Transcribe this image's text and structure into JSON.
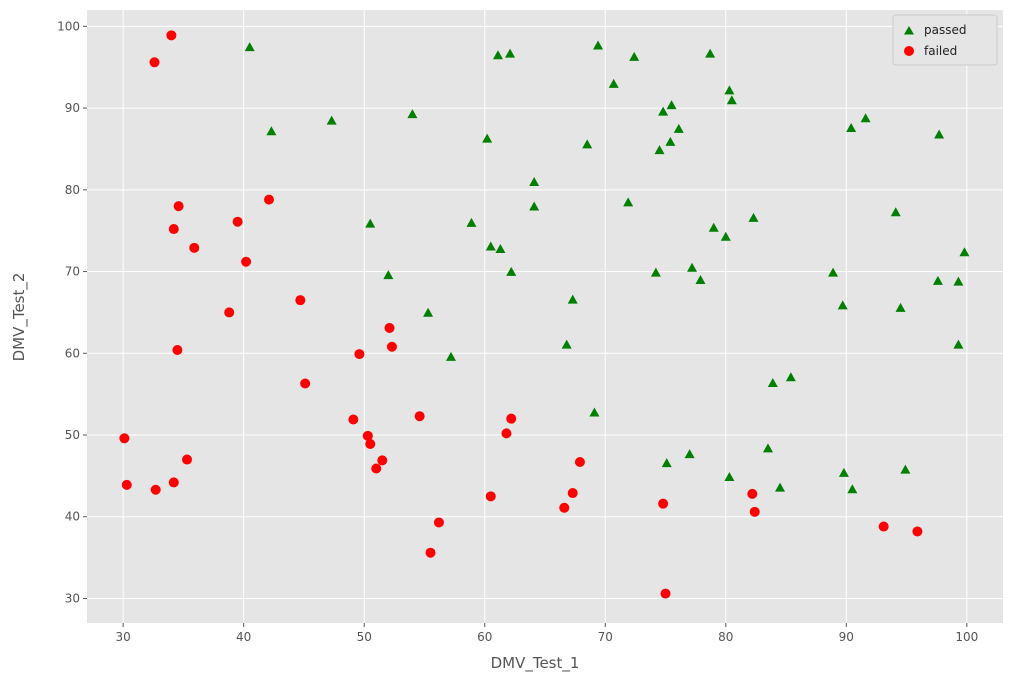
{
  "chart_data": {
    "type": "scatter",
    "title": "",
    "xlabel": "DMV_Test_1",
    "ylabel": "DMV_Test_2",
    "xlim": [
      27,
      103
    ],
    "ylim": [
      27,
      102
    ],
    "xticks": [
      30,
      40,
      50,
      60,
      70,
      80,
      90,
      100
    ],
    "yticks": [
      30,
      40,
      50,
      60,
      70,
      80,
      90,
      100
    ],
    "grid": true,
    "legend_position": "top-right",
    "colors": {
      "background": "#e5e5e5",
      "grid": "#ffffff",
      "passed": "#008000",
      "failed": "#ff0000"
    },
    "series": [
      {
        "name": "passed",
        "marker": "triangle",
        "color": "#008000",
        "points": [
          [
            40.5,
            97.4
          ],
          [
            42.3,
            87.1
          ],
          [
            47.3,
            88.4
          ],
          [
            50.5,
            75.8
          ],
          [
            52.0,
            69.5
          ],
          [
            54.0,
            89.2
          ],
          [
            55.3,
            64.9
          ],
          [
            57.2,
            59.5
          ],
          [
            58.9,
            75.9
          ],
          [
            60.2,
            86.2
          ],
          [
            60.5,
            73.0
          ],
          [
            61.1,
            96.4
          ],
          [
            61.3,
            72.7
          ],
          [
            62.1,
            96.6
          ],
          [
            62.2,
            69.9
          ],
          [
            64.1,
            80.9
          ],
          [
            64.1,
            77.9
          ],
          [
            66.8,
            61.0
          ],
          [
            67.3,
            66.5
          ],
          [
            68.5,
            85.5
          ],
          [
            69.1,
            52.7
          ],
          [
            69.4,
            97.6
          ],
          [
            70.7,
            92.9
          ],
          [
            71.9,
            78.4
          ],
          [
            72.4,
            96.2
          ],
          [
            74.2,
            69.8
          ],
          [
            74.5,
            84.8
          ],
          [
            74.8,
            89.5
          ],
          [
            75.1,
            46.5
          ],
          [
            75.4,
            85.8
          ],
          [
            75.5,
            90.3
          ],
          [
            76.1,
            87.4
          ],
          [
            77.0,
            47.6
          ],
          [
            77.2,
            70.4
          ],
          [
            77.9,
            68.9
          ],
          [
            78.7,
            96.6
          ],
          [
            79.0,
            75.3
          ],
          [
            80.0,
            74.2
          ],
          [
            80.3,
            44.8
          ],
          [
            80.3,
            92.1
          ],
          [
            80.5,
            90.9
          ],
          [
            82.3,
            76.5
          ],
          [
            83.5,
            48.3
          ],
          [
            83.9,
            56.3
          ],
          [
            84.5,
            43.5
          ],
          [
            85.4,
            57.0
          ],
          [
            88.9,
            69.8
          ],
          [
            89.7,
            65.8
          ],
          [
            89.8,
            45.3
          ],
          [
            90.4,
            87.5
          ],
          [
            90.5,
            43.3
          ],
          [
            91.6,
            88.7
          ],
          [
            94.1,
            77.2
          ],
          [
            94.5,
            65.5
          ],
          [
            94.9,
            45.7
          ],
          [
            97.6,
            68.8
          ],
          [
            97.7,
            86.7
          ],
          [
            99.3,
            68.7
          ],
          [
            99.3,
            61.0
          ],
          [
            99.8,
            72.3
          ]
        ]
      },
      {
        "name": "failed",
        "marker": "circle",
        "color": "#ff0000",
        "points": [
          [
            30.1,
            49.6
          ],
          [
            30.3,
            43.9
          ],
          [
            32.6,
            95.6
          ],
          [
            32.7,
            43.3
          ],
          [
            34.0,
            98.9
          ],
          [
            34.2,
            75.2
          ],
          [
            34.2,
            44.2
          ],
          [
            34.5,
            60.4
          ],
          [
            34.6,
            78.0
          ],
          [
            35.3,
            47.0
          ],
          [
            35.9,
            72.9
          ],
          [
            38.8,
            65.0
          ],
          [
            39.5,
            76.1
          ],
          [
            40.2,
            71.2
          ],
          [
            42.1,
            78.8
          ],
          [
            44.7,
            66.5
          ],
          [
            45.1,
            56.3
          ],
          [
            49.1,
            51.9
          ],
          [
            49.6,
            59.9
          ],
          [
            50.3,
            49.9
          ],
          [
            50.5,
            48.9
          ],
          [
            51.0,
            45.9
          ],
          [
            51.5,
            46.9
          ],
          [
            52.1,
            63.1
          ],
          [
            52.3,
            60.8
          ],
          [
            54.6,
            52.3
          ],
          [
            55.5,
            35.6
          ],
          [
            56.2,
            39.3
          ],
          [
            60.5,
            42.5
          ],
          [
            61.8,
            50.2
          ],
          [
            62.2,
            52.0
          ],
          [
            66.6,
            41.1
          ],
          [
            67.3,
            42.9
          ],
          [
            67.9,
            46.7
          ],
          [
            74.8,
            41.6
          ],
          [
            75.0,
            30.6
          ],
          [
            82.2,
            42.8
          ],
          [
            82.4,
            40.6
          ],
          [
            93.1,
            38.8
          ],
          [
            95.9,
            38.2
          ]
        ]
      }
    ]
  }
}
